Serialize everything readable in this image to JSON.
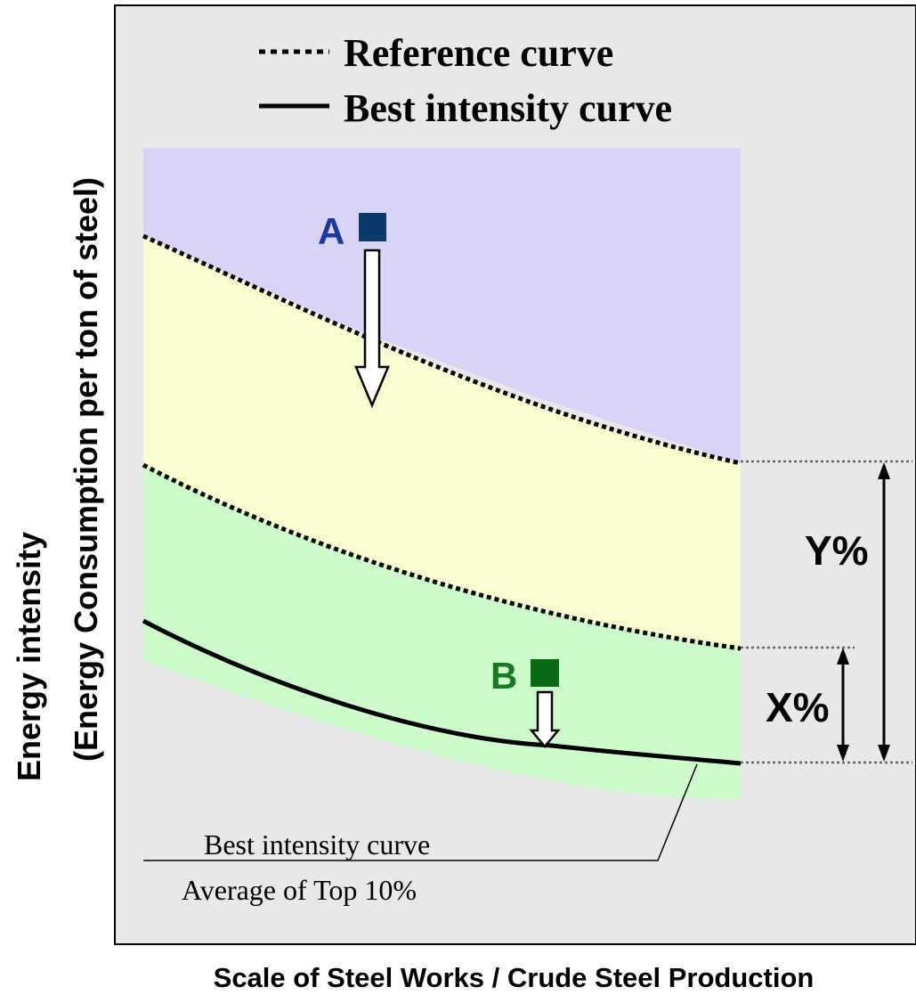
{
  "legend": {
    "reference_label": "Reference curve",
    "best_label": "Best intensity curve"
  },
  "axes": {
    "y_title_line1": "Energy intensity",
    "y_title_line2": "(Energy Consumption per ton of steel)",
    "x_title": "Scale of Steel Works / Crude Steel Production"
  },
  "points": {
    "a_label": "A",
    "b_label": "B"
  },
  "gaps": {
    "y_label": "Y%",
    "x_label": "X%"
  },
  "annotation": {
    "line1": "Best intensity curve",
    "line2": "Average of Top 10%"
  },
  "colors": {
    "panel_bg": "#e8e8e8",
    "zone_top": "#d8d4f8",
    "zone_middle": "#fafcd0",
    "zone_bottom": "#ccfccc",
    "point_a": "#0a3a6e",
    "label_a": "#1a3aa0",
    "point_b": "#0a6a14",
    "label_b": "#1a7a24"
  }
}
